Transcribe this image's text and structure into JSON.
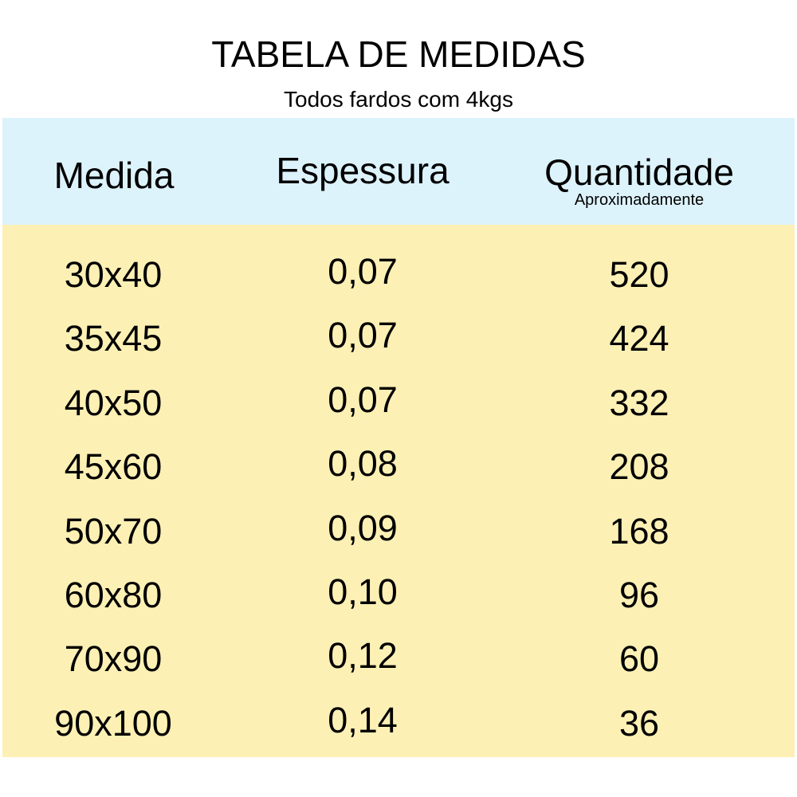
{
  "title": "TABELA DE MEDIDAS",
  "subtitle": "Todos fardos com 4kgs",
  "colors": {
    "header_bg": "#ddf3fc",
    "body_bg": "#fdf0b4"
  },
  "table": {
    "headers": [
      "Medida",
      "Espessura",
      "Quantidade"
    ],
    "quantity_note": "Aproximadamente",
    "rows": [
      [
        "30x40",
        "0,07",
        "520"
      ],
      [
        "35x45",
        "0,07",
        "424"
      ],
      [
        "40x50",
        "0,07",
        "332"
      ],
      [
        "45x60",
        "0,08",
        "208"
      ],
      [
        "50x70",
        "0,09",
        "168"
      ],
      [
        "60x80",
        "0,10",
        "96"
      ],
      [
        "70x90",
        "0,12",
        "60"
      ],
      [
        "90x100",
        "0,14",
        "36"
      ]
    ]
  }
}
